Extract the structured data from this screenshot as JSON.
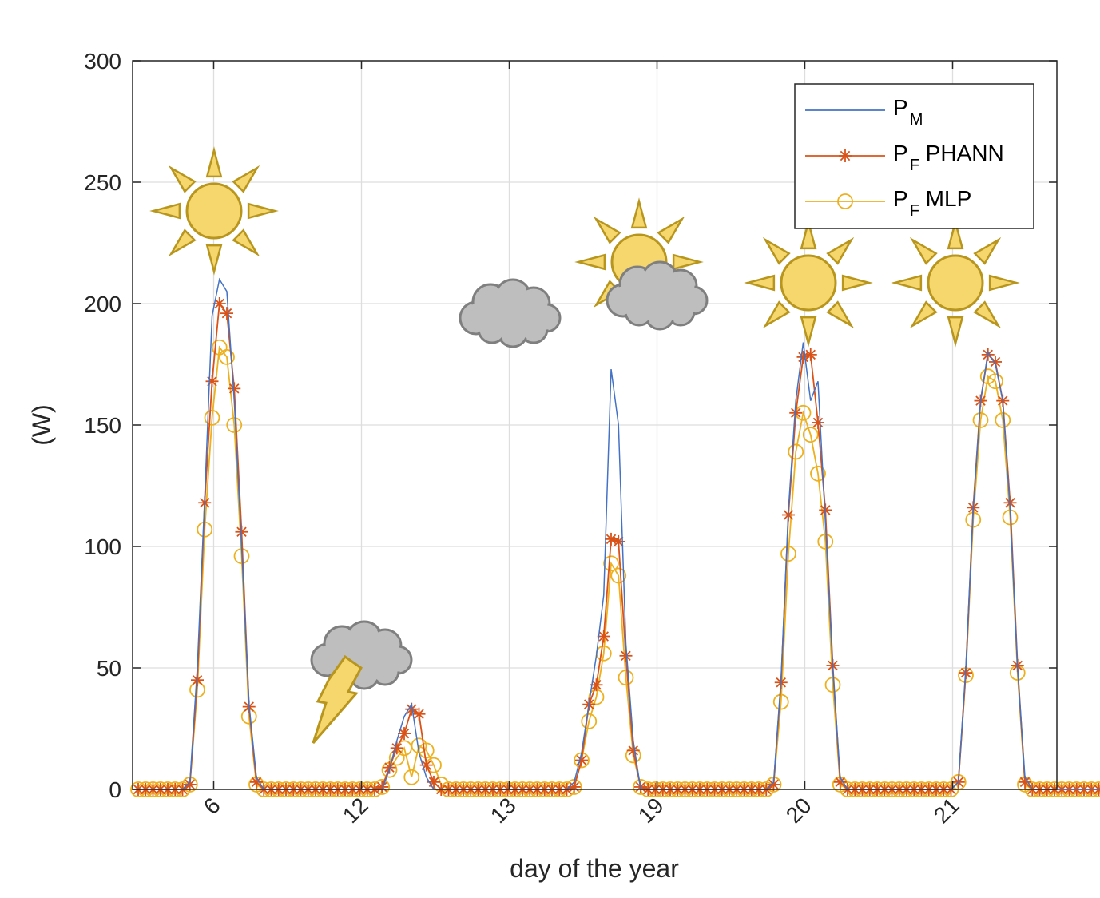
{
  "chart_data": {
    "type": "line",
    "title": "",
    "xlabel": "day of the year",
    "ylabel": "(W)",
    "ylim": [
      0,
      300
    ],
    "yticks": [
      0,
      50,
      100,
      150,
      200,
      250,
      300
    ],
    "day_ticks": [
      {
        "label": "6",
        "index": 10
      },
      {
        "label": "12",
        "index": 30
      },
      {
        "label": "13",
        "index": 50
      },
      {
        "label": "19",
        "index": 70
      },
      {
        "label": "20",
        "index": 90
      },
      {
        "label": "21",
        "index": 110
      }
    ],
    "grid": true,
    "legend_position": "top-right",
    "series": [
      {
        "id": "pm",
        "legend_main": "P",
        "legend_sub": "M",
        "legend_suffix": "",
        "color": "#4472C4",
        "marker": "none",
        "values": [
          0,
          0,
          0,
          0,
          0,
          0,
          0,
          3,
          50,
          120,
          195,
          210,
          205,
          160,
          100,
          35,
          5,
          0,
          0,
          0,
          0,
          0,
          0,
          0,
          0,
          0,
          0,
          0,
          0,
          0,
          0,
          0,
          0,
          0,
          8,
          20,
          30,
          35,
          15,
          5,
          0,
          0,
          0,
          0,
          0,
          0,
          0,
          0,
          0,
          0,
          0,
          0,
          0,
          0,
          0,
          0,
          0,
          0,
          0,
          3,
          15,
          35,
          55,
          80,
          173,
          150,
          60,
          20,
          0,
          0,
          0,
          0,
          0,
          0,
          0,
          0,
          0,
          0,
          0,
          0,
          0,
          0,
          0,
          0,
          0,
          0,
          3,
          45,
          115,
          160,
          184,
          160,
          168,
          110,
          50,
          5,
          0,
          0,
          0,
          0,
          0,
          0,
          0,
          0,
          0,
          0,
          0,
          0,
          0,
          0,
          0,
          3,
          50,
          115,
          160,
          180,
          175,
          160,
          115,
          50,
          5,
          0,
          0,
          0,
          0,
          0,
          0,
          0,
          0,
          0,
          0,
          0,
          0,
          0,
          0,
          0,
          3,
          50,
          115,
          165,
          180,
          175,
          155,
          105,
          45,
          5,
          0,
          0,
          0,
          0,
          0,
          0
        ]
      },
      {
        "id": "pphann",
        "legend_main": "P",
        "legend_sub": "F",
        "legend_suffix": " PHANN",
        "color": "#D95319",
        "marker": "asterisk",
        "values": [
          0,
          0,
          0,
          0,
          0,
          0,
          0,
          2,
          45,
          118,
          168,
          200,
          196,
          165,
          106,
          34,
          3,
          0,
          0,
          0,
          0,
          0,
          0,
          0,
          0,
          0,
          0,
          0,
          0,
          0,
          0,
          0,
          0,
          1,
          9,
          17,
          23,
          33,
          31,
          10,
          3,
          0,
          0,
          0,
          0,
          0,
          0,
          0,
          0,
          0,
          0,
          0,
          0,
          0,
          0,
          0,
          0,
          0,
          0,
          1,
          12,
          35,
          43,
          63,
          103,
          102,
          55,
          16,
          1,
          0,
          0,
          0,
          0,
          0,
          0,
          0,
          0,
          0,
          0,
          0,
          0,
          0,
          0,
          0,
          0,
          0,
          2,
          44,
          113,
          155,
          178,
          179,
          151,
          115,
          51,
          3,
          0,
          0,
          0,
          0,
          0,
          0,
          0,
          0,
          0,
          0,
          0,
          0,
          0,
          0,
          0,
          3,
          48,
          116,
          160,
          179,
          176,
          160,
          118,
          51,
          3,
          0,
          0,
          0,
          0,
          0,
          0,
          0,
          0,
          0,
          0,
          0,
          0,
          0,
          0,
          0,
          2,
          48,
          116,
          164,
          178,
          175,
          156,
          108,
          46,
          3,
          0,
          0,
          0,
          0,
          0,
          0
        ]
      },
      {
        "id": "pmlp",
        "legend_main": "P",
        "legend_sub": "F",
        "legend_suffix": " MLP",
        "color": "#EDB120",
        "marker": "circle",
        "values": [
          0,
          0,
          0,
          0,
          0,
          0,
          0,
          2,
          41,
          107,
          153,
          182,
          178,
          150,
          96,
          30,
          2,
          0,
          0,
          0,
          0,
          0,
          0,
          0,
          0,
          0,
          0,
          0,
          0,
          0,
          0,
          0,
          0,
          1,
          8,
          13,
          17,
          5,
          18,
          16,
          10,
          2,
          0,
          0,
          0,
          0,
          0,
          0,
          0,
          0,
          0,
          0,
          0,
          0,
          0,
          0,
          0,
          0,
          0,
          1,
          12,
          28,
          38,
          56,
          93,
          88,
          46,
          14,
          1,
          0,
          0,
          0,
          0,
          0,
          0,
          0,
          0,
          0,
          0,
          0,
          0,
          0,
          0,
          0,
          0,
          0,
          2,
          36,
          97,
          139,
          155,
          146,
          130,
          102,
          43,
          2,
          0,
          0,
          0,
          0,
          0,
          0,
          0,
          0,
          0,
          0,
          0,
          0,
          0,
          0,
          0,
          3,
          47,
          111,
          152,
          170,
          168,
          152,
          112,
          48,
          2,
          0,
          0,
          0,
          0,
          0,
          0,
          0,
          0,
          0,
          0,
          0,
          0,
          0,
          0,
          0,
          2,
          46,
          111,
          156,
          170,
          166,
          148,
          103,
          44,
          2,
          0,
          0,
          0,
          0,
          0,
          0
        ]
      }
    ],
    "weather_icons": [
      {
        "name": "sun-icon-day-6",
        "type": "sun"
      },
      {
        "name": "storm-cloud-icon-day-12",
        "type": "storm"
      },
      {
        "name": "cloud-icon-day-13",
        "type": "cloud"
      },
      {
        "name": "sun-cloud-icon-day-19",
        "type": "sun-cloud"
      },
      {
        "name": "sun-icon-day-20",
        "type": "sun"
      },
      {
        "name": "sun-icon-day-21",
        "type": "sun"
      }
    ],
    "icon_colors": {
      "sun_fill": "#F5D76E",
      "sun_stroke": "#B8961E",
      "cloud_fill": "#BEBEBE",
      "cloud_stroke": "#7F7F7F",
      "bolt_fill": "#F5D76E"
    }
  }
}
